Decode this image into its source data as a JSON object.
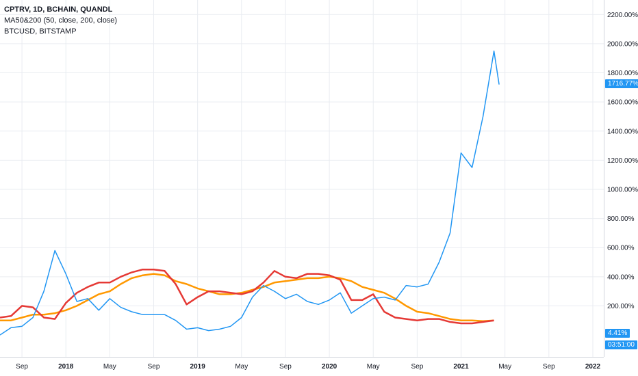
{
  "legend": {
    "line1": "CPTRV, 1D, BCHAIN, QUANDL",
    "line2": "MA50&200 (50, close, 200, close)",
    "line3": "BTCUSD, BITSTAMP"
  },
  "tags": {
    "last_value": "1716.77%",
    "small_value": "4.41%",
    "countdown": "03:51:00"
  },
  "colors": {
    "cptrv": "#2196f3",
    "ma50": "#e53935",
    "ma200": "#ff9800",
    "grid": "#e9ecf1",
    "axis_text": "#131722",
    "tag_bg": "#2196f3"
  },
  "chart_data": {
    "type": "line",
    "y_unit": "%",
    "ylim": [
      -150,
      2300
    ],
    "y_ticks": [
      "200.00%",
      "400.00%",
      "600.00%",
      "800.00%",
      "1000.00%",
      "1200.00%",
      "1400.00%",
      "1600.00%",
      "1800.00%",
      "2000.00%",
      "2200.00%"
    ],
    "x_tick_labels": [
      "Sep",
      "2018",
      "May",
      "Sep",
      "2019",
      "May",
      "Sep",
      "2020",
      "May",
      "Sep",
      "2021",
      "May",
      "Sep",
      "2022"
    ],
    "x_ticks": [
      "2017-09",
      "2018-01",
      "2018-05",
      "2018-09",
      "2019-01",
      "2019-05",
      "2019-09",
      "2020-01",
      "2020-05",
      "2020-09",
      "2021-01",
      "2021-05",
      "2021-09",
      "2022-01"
    ],
    "xlim": [
      "2017-07",
      "2022-02"
    ],
    "grid": true,
    "series": [
      {
        "key": "cptrv",
        "color": "#2196f3",
        "points": [
          [
            "2017-07",
            0
          ],
          [
            "2017-08",
            50
          ],
          [
            "2017-09",
            60
          ],
          [
            "2017-10",
            120
          ],
          [
            "2017-11",
            300
          ],
          [
            "2017-12",
            580
          ],
          [
            "2018-01",
            420
          ],
          [
            "2018-02",
            230
          ],
          [
            "2018-03",
            250
          ],
          [
            "2018-04",
            170
          ],
          [
            "2018-05",
            250
          ],
          [
            "2018-06",
            190
          ],
          [
            "2018-07",
            160
          ],
          [
            "2018-08",
            140
          ],
          [
            "2018-09",
            140
          ],
          [
            "2018-10",
            140
          ],
          [
            "2018-11",
            100
          ],
          [
            "2018-12",
            40
          ],
          [
            "2019-01",
            50
          ],
          [
            "2019-02",
            30
          ],
          [
            "2019-03",
            40
          ],
          [
            "2019-04",
            60
          ],
          [
            "2019-05",
            120
          ],
          [
            "2019-06",
            260
          ],
          [
            "2019-07",
            340
          ],
          [
            "2019-08",
            300
          ],
          [
            "2019-09",
            250
          ],
          [
            "2019-10",
            280
          ],
          [
            "2019-11",
            230
          ],
          [
            "2019-12",
            210
          ],
          [
            "2020-01",
            240
          ],
          [
            "2020-02",
            290
          ],
          [
            "2020-03",
            150
          ],
          [
            "2020-04",
            200
          ],
          [
            "2020-05",
            250
          ],
          [
            "2020-06",
            260
          ],
          [
            "2020-07",
            240
          ],
          [
            "2020-08",
            340
          ],
          [
            "2020-09",
            330
          ],
          [
            "2020-10",
            350
          ],
          [
            "2020-11",
            500
          ],
          [
            "2020-12",
            700
          ],
          [
            "2021-01",
            1250
          ],
          [
            "2021-02",
            1150
          ],
          [
            "2021-03",
            1500
          ],
          [
            "2021-04",
            1950
          ],
          [
            "2021-04-15",
            1720
          ]
        ]
      },
      {
        "key": "ma50",
        "color": "#e53935",
        "points": [
          [
            "2017-07",
            120
          ],
          [
            "2017-08",
            130
          ],
          [
            "2017-09",
            200
          ],
          [
            "2017-10",
            190
          ],
          [
            "2017-11",
            120
          ],
          [
            "2017-12",
            110
          ],
          [
            "2018-01",
            220
          ],
          [
            "2018-02",
            290
          ],
          [
            "2018-03",
            330
          ],
          [
            "2018-04",
            360
          ],
          [
            "2018-05",
            360
          ],
          [
            "2018-06",
            400
          ],
          [
            "2018-07",
            430
          ],
          [
            "2018-08",
            450
          ],
          [
            "2018-09",
            450
          ],
          [
            "2018-10",
            440
          ],
          [
            "2018-11",
            350
          ],
          [
            "2018-12",
            210
          ],
          [
            "2019-01",
            260
          ],
          [
            "2019-02",
            300
          ],
          [
            "2019-03",
            300
          ],
          [
            "2019-04",
            290
          ],
          [
            "2019-05",
            280
          ],
          [
            "2019-06",
            300
          ],
          [
            "2019-07",
            360
          ],
          [
            "2019-08",
            440
          ],
          [
            "2019-09",
            400
          ],
          [
            "2019-10",
            390
          ],
          [
            "2019-11",
            420
          ],
          [
            "2019-12",
            420
          ],
          [
            "2020-01",
            410
          ],
          [
            "2020-02",
            380
          ],
          [
            "2020-03",
            240
          ],
          [
            "2020-04",
            240
          ],
          [
            "2020-05",
            280
          ],
          [
            "2020-06",
            160
          ],
          [
            "2020-07",
            120
          ],
          [
            "2020-08",
            110
          ],
          [
            "2020-09",
            100
          ],
          [
            "2020-10",
            110
          ],
          [
            "2020-11",
            110
          ],
          [
            "2020-12",
            90
          ],
          [
            "2021-01",
            80
          ],
          [
            "2021-02",
            80
          ],
          [
            "2021-03",
            90
          ],
          [
            "2021-04",
            100
          ]
        ]
      },
      {
        "key": "ma200",
        "color": "#ff9800",
        "points": [
          [
            "2017-07",
            100
          ],
          [
            "2017-08",
            100
          ],
          [
            "2017-09",
            120
          ],
          [
            "2017-10",
            140
          ],
          [
            "2017-11",
            140
          ],
          [
            "2017-12",
            150
          ],
          [
            "2018-01",
            170
          ],
          [
            "2018-02",
            200
          ],
          [
            "2018-03",
            240
          ],
          [
            "2018-04",
            280
          ],
          [
            "2018-05",
            300
          ],
          [
            "2018-06",
            350
          ],
          [
            "2018-07",
            390
          ],
          [
            "2018-08",
            410
          ],
          [
            "2018-09",
            420
          ],
          [
            "2018-10",
            410
          ],
          [
            "2018-11",
            370
          ],
          [
            "2018-12",
            350
          ],
          [
            "2019-01",
            320
          ],
          [
            "2019-02",
            300
          ],
          [
            "2019-03",
            280
          ],
          [
            "2019-04",
            280
          ],
          [
            "2019-05",
            290
          ],
          [
            "2019-06",
            310
          ],
          [
            "2019-07",
            330
          ],
          [
            "2019-08",
            360
          ],
          [
            "2019-09",
            370
          ],
          [
            "2019-10",
            380
          ],
          [
            "2019-11",
            390
          ],
          [
            "2019-12",
            390
          ],
          [
            "2020-01",
            400
          ],
          [
            "2020-02",
            390
          ],
          [
            "2020-03",
            370
          ],
          [
            "2020-04",
            330
          ],
          [
            "2020-05",
            310
          ],
          [
            "2020-06",
            290
          ],
          [
            "2020-07",
            250
          ],
          [
            "2020-08",
            200
          ],
          [
            "2020-09",
            160
          ],
          [
            "2020-10",
            150
          ],
          [
            "2020-11",
            130
          ],
          [
            "2020-12",
            110
          ],
          [
            "2021-01",
            100
          ],
          [
            "2021-02",
            100
          ],
          [
            "2021-03",
            95
          ],
          [
            "2021-04",
            100
          ]
        ]
      }
    ]
  }
}
